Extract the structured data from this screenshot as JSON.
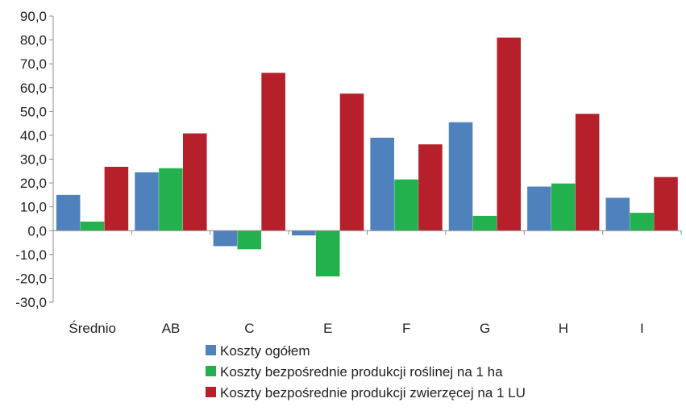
{
  "chart_data": {
    "type": "bar",
    "title": "",
    "xlabel": "",
    "ylabel": "",
    "ylim": [
      -30,
      90
    ],
    "yticks": [
      "90,0",
      "80,0",
      "70,0",
      "60,0",
      "50,0",
      "40,0",
      "30,0",
      "20,0",
      "10,0",
      "0,0",
      "-10,0",
      "-20,0",
      "-30,0"
    ],
    "categories": [
      "Średnio",
      "AB",
      "C",
      "E",
      "F",
      "G",
      "H",
      "I"
    ],
    "series": [
      {
        "name": "Koszty ogółem",
        "color": "#4f81bd",
        "values": [
          15.0,
          24.5,
          -6.5,
          -2.0,
          39.0,
          45.5,
          18.5,
          13.8
        ]
      },
      {
        "name": "Koszty bezpośrednie produkcji roślinej na 1 ha",
        "color": "#22b14c",
        "values": [
          3.8,
          26.2,
          -7.8,
          -19.2,
          21.5,
          6.2,
          19.8,
          7.5
        ]
      },
      {
        "name": "Koszty bezpośrednie produkcji zwierzęcej na 1 LU",
        "color": "#b5202a",
        "values": [
          26.8,
          40.8,
          66.2,
          57.5,
          36.2,
          81.0,
          49.0,
          22.5
        ]
      }
    ],
    "grid": false,
    "legend": "bottom"
  }
}
